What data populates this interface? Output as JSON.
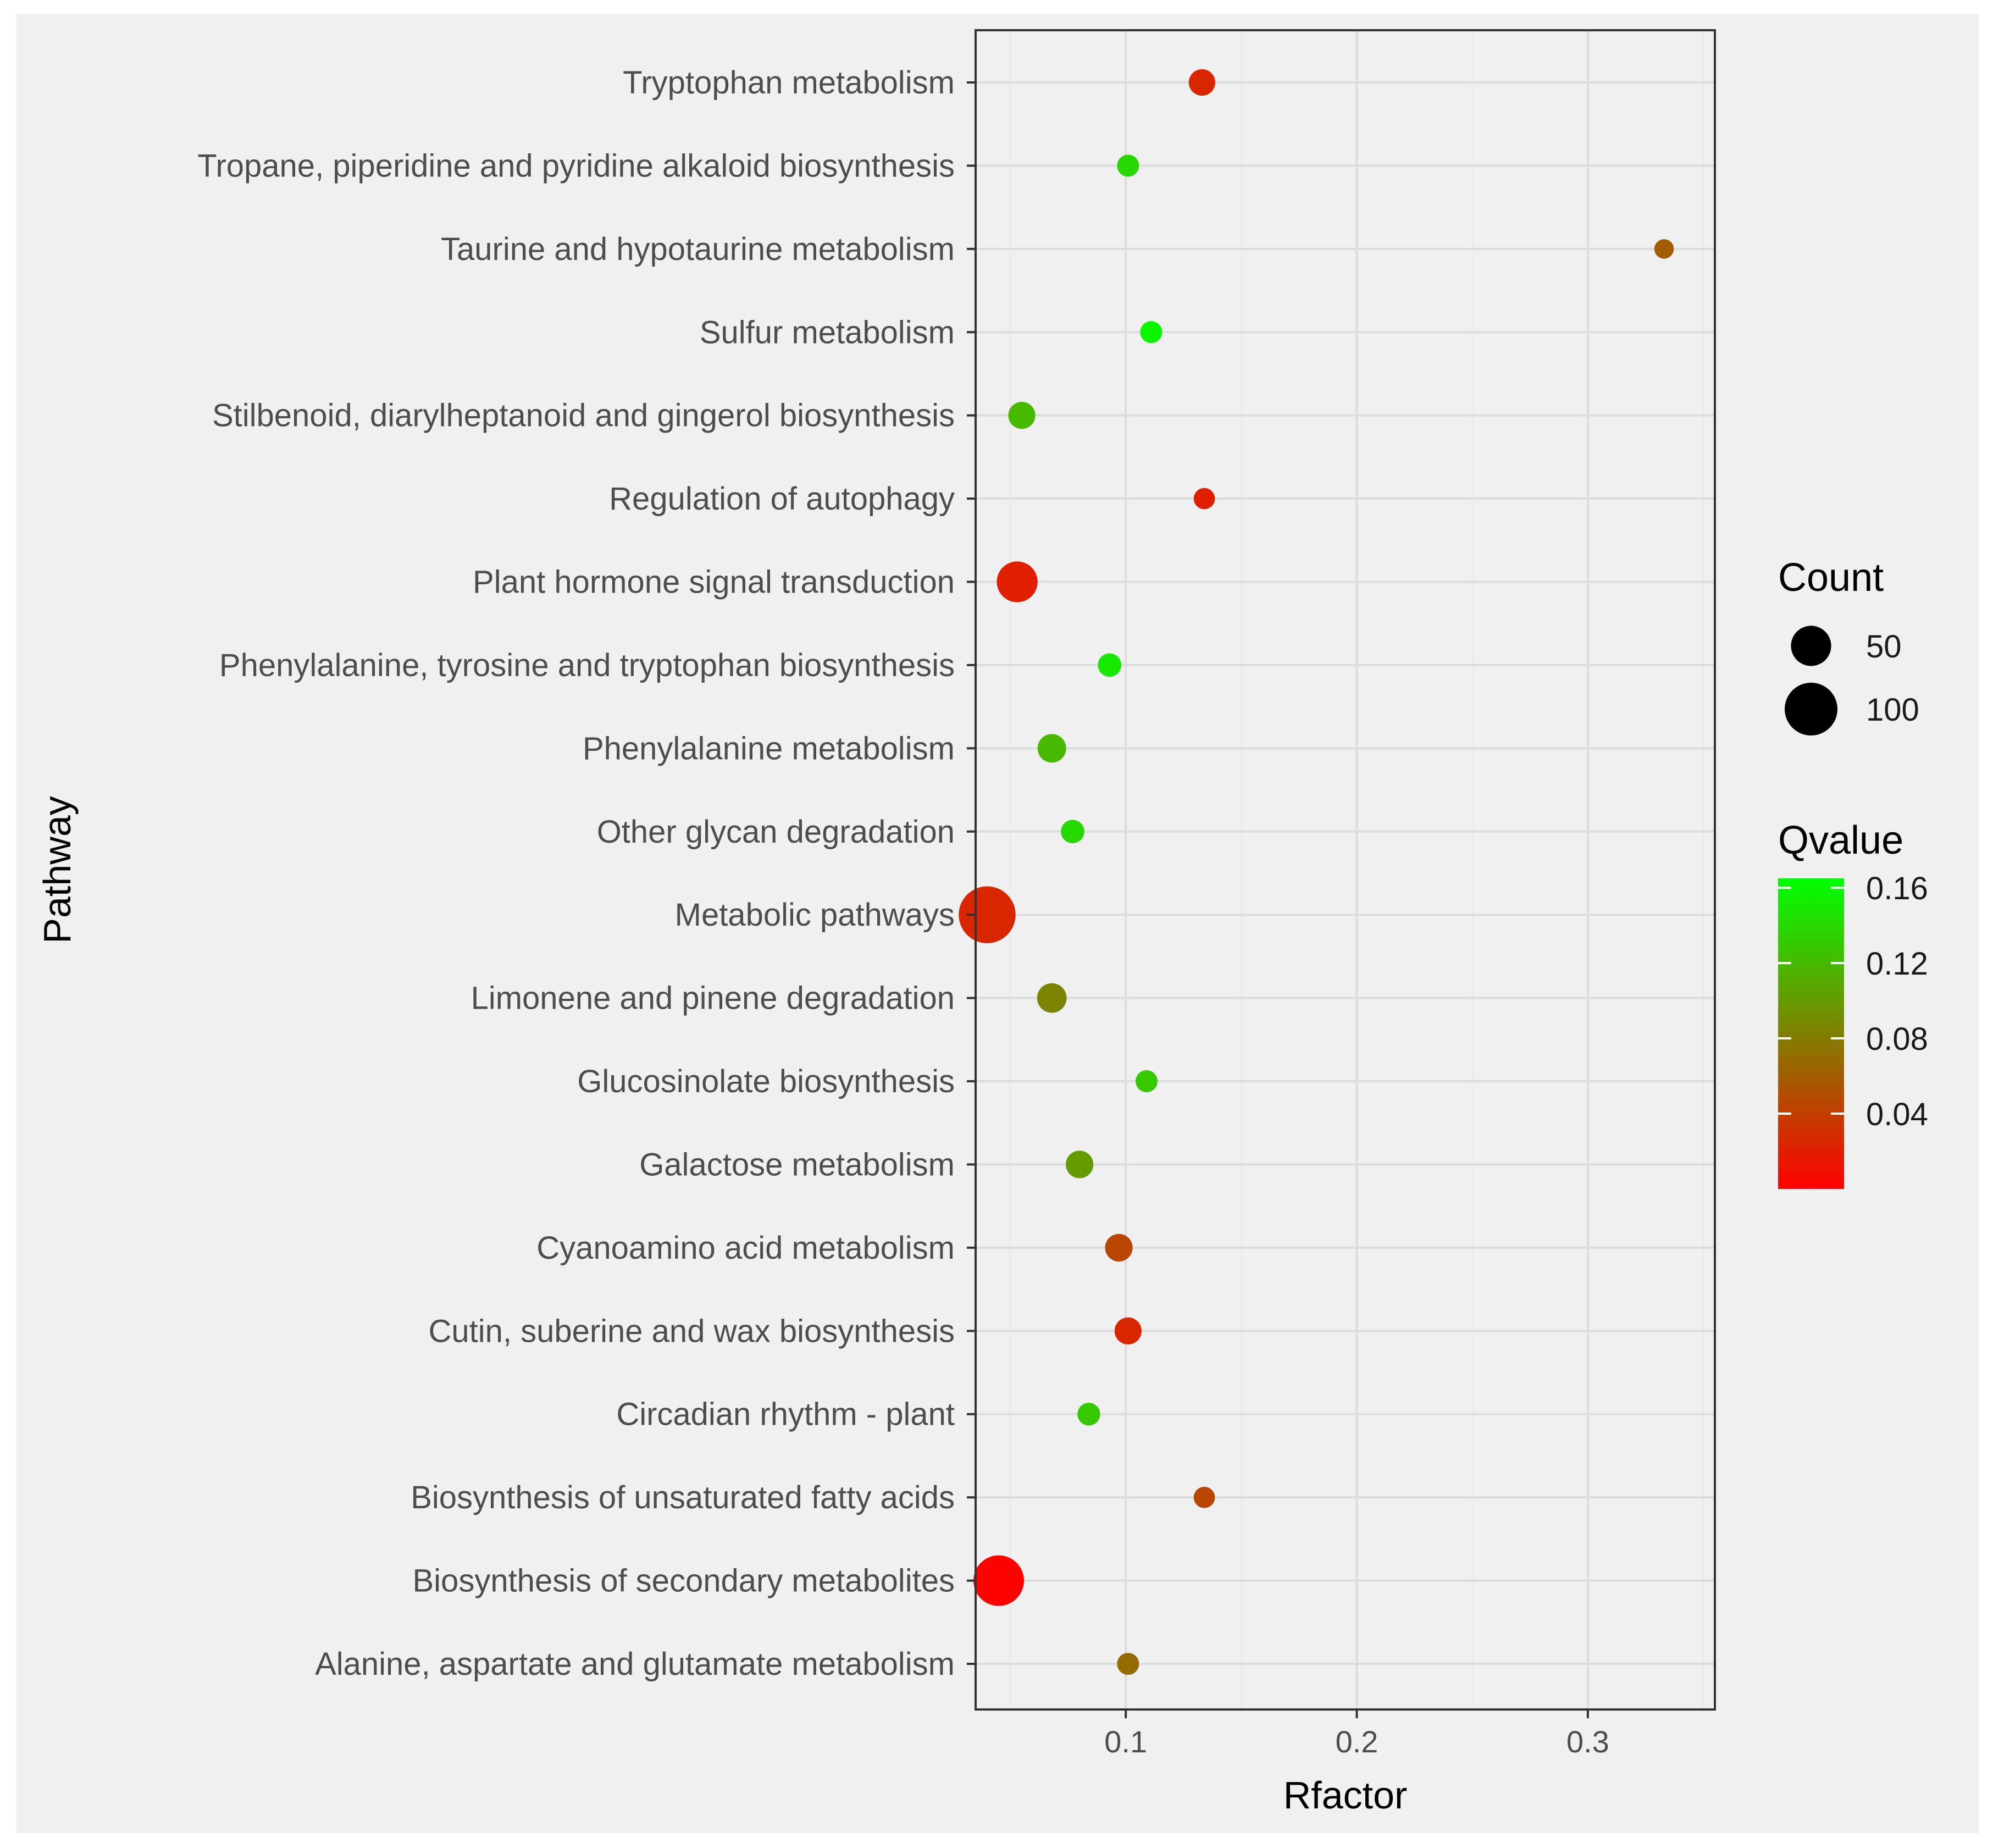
{
  "chart_data": {
    "type": "scatter",
    "title": "",
    "xlabel": "Rfactor",
    "ylabel": "Pathway",
    "xlim": [
      0.035,
      0.355
    ],
    "xticks": [
      0.1,
      0.2,
      0.3
    ],
    "xtick_labels": [
      "0.1",
      "0.2",
      "0.3"
    ],
    "grid": true,
    "categories": [
      "Alanine, aspartate and glutamate metabolism",
      "Biosynthesis of secondary metabolites",
      "Biosynthesis of unsaturated fatty acids",
      "Circadian rhythm - plant",
      "Cutin, suberine and wax biosynthesis",
      "Cyanoamino acid metabolism",
      "Galactose metabolism",
      "Glucosinolate biosynthesis",
      "Limonene and pinene degradation",
      "Metabolic pathways",
      "Other glycan degradation",
      "Phenylalanine metabolism",
      "Phenylalanine, tyrosine and tryptophan biosynthesis",
      "Plant hormone signal transduction",
      "Regulation of autophagy",
      "Stilbenoid, diarylheptanoid and gingerol biosynthesis",
      "Sulfur metabolism",
      "Taurine and hypotaurine metabolism",
      "Tropane, piperidine and pyridine alkaloid biosynthesis",
      "Tryptophan metabolism"
    ],
    "points": [
      {
        "pathway": "Alanine, aspartate and glutamate metabolism",
        "rfactor": 0.101,
        "count": 8,
        "qvalue": 0.07
      },
      {
        "pathway": "Biosynthesis of secondary metabolites",
        "rfactor": 0.045,
        "count": 90,
        "qvalue": 0.002
      },
      {
        "pathway": "Biosynthesis of unsaturated fatty acids",
        "rfactor": 0.134,
        "count": 7,
        "qvalue": 0.045
      },
      {
        "pathway": "Circadian rhythm - plant",
        "rfactor": 0.084,
        "count": 9,
        "qvalue": 0.13
      },
      {
        "pathway": "Cutin, suberine and wax biosynthesis",
        "rfactor": 0.101,
        "count": 16,
        "qvalue": 0.025
      },
      {
        "pathway": "Cyanoamino acid metabolism",
        "rfactor": 0.097,
        "count": 17,
        "qvalue": 0.045
      },
      {
        "pathway": "Galactose metabolism",
        "rfactor": 0.08,
        "count": 17,
        "qvalue": 0.1
      },
      {
        "pathway": "Glucosinolate biosynthesis",
        "rfactor": 0.109,
        "count": 8,
        "qvalue": 0.13
      },
      {
        "pathway": "Limonene and pinene degradation",
        "rfactor": 0.068,
        "count": 21,
        "qvalue": 0.085
      },
      {
        "pathway": "Metabolic pathways",
        "rfactor": 0.04,
        "count": 120,
        "qvalue": 0.025
      },
      {
        "pathway": "Other glycan degradation",
        "rfactor": 0.077,
        "count": 10,
        "qvalue": 0.14
      },
      {
        "pathway": "Phenylalanine metabolism",
        "rfactor": 0.068,
        "count": 19,
        "qvalue": 0.12
      },
      {
        "pathway": "Phenylalanine, tyrosine and tryptophan biosynthesis",
        "rfactor": 0.093,
        "count": 10,
        "qvalue": 0.15
      },
      {
        "pathway": "Plant hormone signal transduction",
        "rfactor": 0.053,
        "count": 52,
        "qvalue": 0.02
      },
      {
        "pathway": "Regulation of autophagy",
        "rfactor": 0.134,
        "count": 7,
        "qvalue": 0.02
      },
      {
        "pathway": "Stilbenoid, diarylheptanoid and gingerol biosynthesis",
        "rfactor": 0.055,
        "count": 16,
        "qvalue": 0.12
      },
      {
        "pathway": "Sulfur metabolism",
        "rfactor": 0.111,
        "count": 8,
        "qvalue": 0.16
      },
      {
        "pathway": "Taurine and hypotaurine metabolism",
        "rfactor": 0.333,
        "count": 5,
        "qvalue": 0.06
      },
      {
        "pathway": "Tropane, piperidine and pyridine alkaloid biosynthesis",
        "rfactor": 0.101,
        "count": 8,
        "qvalue": 0.14
      },
      {
        "pathway": "Tryptophan metabolism",
        "rfactor": 0.133,
        "count": 15,
        "qvalue": 0.025
      }
    ],
    "size_legend": {
      "title": "Count",
      "entries": [
        {
          "label": "50",
          "value": 50
        },
        {
          "label": "100",
          "value": 100
        }
      ]
    },
    "color_legend": {
      "title": "Qvalue",
      "range": [
        0.0,
        0.165
      ],
      "low_color": "#ff0000",
      "high_color": "#00ff00",
      "ticks": [
        {
          "label": "0.16",
          "value": 0.16
        },
        {
          "label": "0.12",
          "value": 0.12
        },
        {
          "label": "0.08",
          "value": 0.08
        },
        {
          "label": "0.04",
          "value": 0.04
        }
      ]
    },
    "colors": {
      "page_background": "#ffffff",
      "figure_background": "#f0f0f0",
      "panel_background": "#f0f0f0",
      "panel_border": "#333333",
      "grid_major": "#dcdcdc",
      "grid_minor": "#e9e9e9",
      "tick_text": "#4d4d4d"
    }
  }
}
